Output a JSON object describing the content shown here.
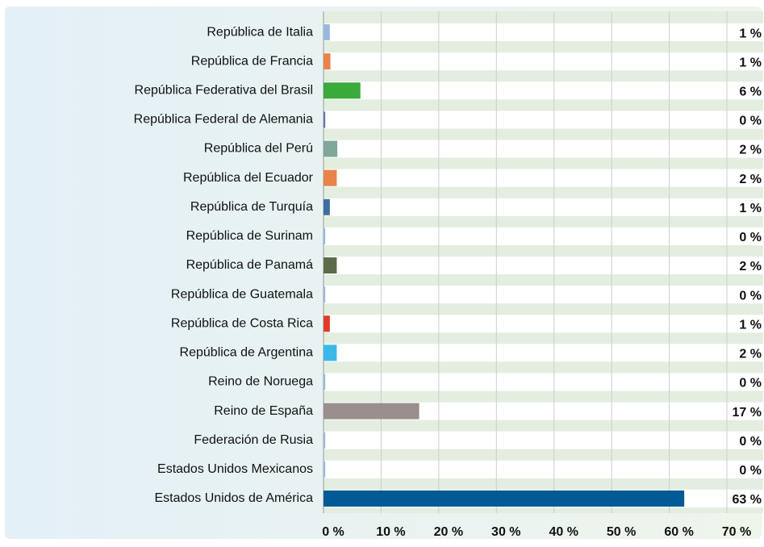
{
  "chart_data": {
    "type": "hbar",
    "categories": [
      "República de Italia",
      "República de Francia",
      "República Federativa del Brasil",
      "República Federal de Alemania",
      "República del Perú",
      "República del Ecuador",
      "República de Turquía",
      "República de Surinam",
      "República de Panamá",
      "República de Guatemala",
      "República de Costa Rica",
      "República de Argentina",
      "Reino de Noruega",
      "Reino de España",
      "Federación de Rusia",
      "Estados Unidos Mexicanos",
      "Estados Unidos de América"
    ],
    "values": [
      1.1,
      1.2,
      6.4,
      0.3,
      2.4,
      2.3,
      1.1,
      0.3,
      2.3,
      0.3,
      1.1,
      2.3,
      0.3,
      16.6,
      0.3,
      0.3,
      62.6
    ],
    "value_labels": [
      "1 %",
      "1 %",
      "6 %",
      "0 %",
      "2 %",
      "2 %",
      "1 %",
      "0 %",
      "2 %",
      "0 %",
      "1 %",
      "2 %",
      "0 %",
      "17 %",
      "0 %",
      "0 %",
      "63 %"
    ],
    "colors": [
      "#9ab8dc",
      "#e8834a",
      "#3aaa3a",
      "#5a7aa8",
      "#7fa89a",
      "#e8834a",
      "#3e6e9e",
      "#9ab8dc",
      "#5f6a48",
      "#9ab8dc",
      "#e03a2a",
      "#3cb8e8",
      "#9ab8dc",
      "#9a8e8e",
      "#9ab8dc",
      "#9ab8dc",
      "#005a96"
    ],
    "xlim": [
      0,
      70
    ],
    "xticks": [
      {
        "value": 0,
        "label": "0 %"
      },
      {
        "value": 10,
        "label": "10 %"
      },
      {
        "value": 20,
        "label": "20 %"
      },
      {
        "value": 30,
        "label": "30 %"
      },
      {
        "value": 40,
        "label": "40 %"
      },
      {
        "value": 50,
        "label": "50 %"
      },
      {
        "value": 60,
        "label": "60 %"
      },
      {
        "value": 70,
        "label": "70 %"
      }
    ],
    "grid": true
  }
}
